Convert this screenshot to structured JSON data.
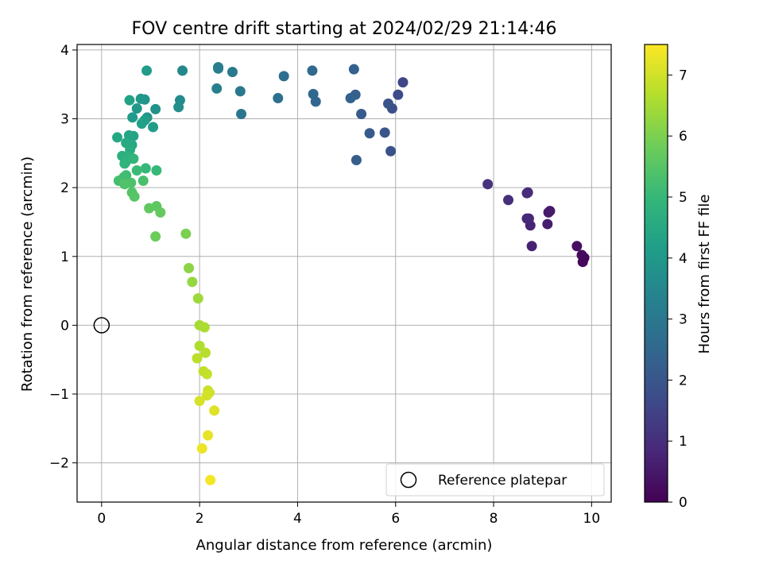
{
  "chart_data": {
    "type": "scatter",
    "title": "FOV centre drift starting at 2024/02/29 21:14:46",
    "xlabel": "Angular distance from reference (arcmin)",
    "ylabel": "Rotation from reference (arcmin)",
    "xlim": [
      -0.5,
      10.4
    ],
    "ylim": [
      -2.57,
      4.08
    ],
    "xticks": [
      0,
      2,
      4,
      6,
      8,
      10
    ],
    "yticks": [
      -2,
      -1,
      0,
      1,
      2,
      3,
      4
    ],
    "grid": true,
    "legend": {
      "position": "lower-right",
      "entries": [
        "Reference platepar"
      ]
    },
    "reference_point": {
      "x": 0,
      "y": 0,
      "label": "Reference platepar"
    },
    "colorbar": {
      "label": "Hours from first FF file",
      "colormap": "viridis",
      "range": [
        0,
        7.5
      ],
      "ticks": [
        0,
        1,
        2,
        3,
        4,
        5,
        6,
        7
      ]
    },
    "points": [
      [
        9.85,
        0.98,
        0.1
      ],
      [
        9.82,
        0.92,
        0.15
      ],
      [
        9.8,
        1.02,
        0.2
      ],
      [
        9.7,
        1.15,
        0.3
      ],
      [
        9.15,
        1.66,
        0.5
      ],
      [
        9.12,
        1.64,
        0.55
      ],
      [
        9.1,
        1.47,
        0.6
      ],
      [
        8.78,
        1.15,
        0.7
      ],
      [
        8.75,
        1.45,
        0.75
      ],
      [
        8.72,
        1.55,
        0.8
      ],
      [
        8.68,
        1.55,
        0.85
      ],
      [
        8.7,
        1.93,
        0.9
      ],
      [
        8.68,
        1.92,
        0.95
      ],
      [
        8.3,
        1.82,
        1.0
      ],
      [
        7.88,
        2.05,
        1.1
      ],
      [
        6.15,
        3.53,
        1.6
      ],
      [
        6.05,
        3.35,
        1.7
      ],
      [
        5.93,
        3.15,
        1.8
      ],
      [
        5.9,
        2.53,
        1.9
      ],
      [
        5.85,
        3.22,
        1.95
      ],
      [
        5.78,
        2.8,
        2.0
      ],
      [
        5.47,
        2.79,
        2.1
      ],
      [
        5.3,
        3.07,
        2.15
      ],
      [
        5.2,
        2.4,
        2.2
      ],
      [
        5.18,
        3.35,
        2.25
      ],
      [
        5.15,
        3.72,
        2.3
      ],
      [
        5.08,
        3.3,
        2.35
      ],
      [
        4.37,
        3.25,
        2.45
      ],
      [
        4.32,
        3.36,
        2.5
      ],
      [
        4.3,
        3.7,
        2.55
      ],
      [
        3.72,
        3.62,
        2.7
      ],
      [
        3.6,
        3.3,
        2.75
      ],
      [
        2.85,
        3.07,
        2.95
      ],
      [
        2.83,
        3.4,
        3.0
      ],
      [
        2.67,
        3.68,
        3.05
      ],
      [
        2.38,
        3.75,
        3.15
      ],
      [
        2.38,
        3.73,
        3.2
      ],
      [
        2.35,
        3.44,
        3.25
      ],
      [
        1.65,
        3.7,
        3.5
      ],
      [
        1.6,
        3.27,
        3.6
      ],
      [
        1.57,
        3.17,
        3.7
      ],
      [
        1.1,
        3.14,
        3.8
      ],
      [
        0.93,
        3.02,
        3.85
      ],
      [
        0.88,
        3.28,
        3.9
      ],
      [
        0.8,
        3.29,
        3.95
      ],
      [
        0.72,
        3.15,
        4.0
      ],
      [
        0.63,
        3.02,
        4.05
      ],
      [
        0.92,
        3.7,
        4.1
      ],
      [
        1.05,
        2.88,
        4.15
      ],
      [
        0.88,
        2.98,
        4.2
      ],
      [
        0.82,
        2.93,
        4.25
      ],
      [
        0.57,
        3.27,
        4.3
      ],
      [
        0.65,
        2.75,
        4.35
      ],
      [
        0.56,
        2.76,
        4.4
      ],
      [
        0.32,
        2.73,
        4.45
      ],
      [
        0.62,
        2.62,
        4.5
      ],
      [
        0.5,
        2.65,
        4.55
      ],
      [
        0.58,
        2.55,
        4.6
      ],
      [
        0.42,
        2.46,
        4.7
      ],
      [
        0.55,
        2.45,
        4.75
      ],
      [
        0.5,
        2.38,
        4.8
      ],
      [
        0.47,
        2.35,
        4.85
      ],
      [
        0.65,
        2.42,
        4.9
      ],
      [
        0.9,
        2.28,
        5.0
      ],
      [
        1.12,
        2.25,
        5.05
      ],
      [
        0.72,
        2.25,
        5.1
      ],
      [
        0.5,
        2.18,
        5.15
      ],
      [
        0.45,
        2.15,
        5.2
      ],
      [
        0.35,
        2.1,
        5.25
      ],
      [
        0.85,
        2.1,
        5.3
      ],
      [
        0.6,
        2.07,
        5.35
      ],
      [
        0.47,
        2.05,
        5.4
      ],
      [
        0.62,
        1.93,
        5.45
      ],
      [
        0.67,
        1.87,
        5.5
      ],
      [
        1.12,
        1.73,
        5.6
      ],
      [
        0.97,
        1.7,
        5.65
      ],
      [
        1.2,
        1.64,
        5.7
      ],
      [
        1.1,
        1.29,
        5.8
      ],
      [
        1.72,
        1.33,
        6.0
      ],
      [
        1.78,
        0.83,
        6.2
      ],
      [
        1.85,
        0.63,
        6.3
      ],
      [
        1.97,
        0.39,
        6.4
      ],
      [
        2.0,
        0.0,
        6.5
      ],
      [
        2.1,
        -0.03,
        6.55
      ],
      [
        2.0,
        -0.3,
        6.6
      ],
      [
        2.12,
        -0.4,
        6.7
      ],
      [
        1.95,
        -0.48,
        6.75
      ],
      [
        2.08,
        -0.67,
        6.8
      ],
      [
        2.15,
        -0.71,
        6.85
      ],
      [
        2.17,
        -0.95,
        6.9
      ],
      [
        2.2,
        -0.98,
        6.95
      ],
      [
        2.15,
        -1.02,
        7.0
      ],
      [
        2.0,
        -1.1,
        7.05
      ],
      [
        2.3,
        -1.24,
        7.15
      ],
      [
        2.17,
        -1.6,
        7.25
      ],
      [
        2.05,
        -1.79,
        7.3
      ],
      [
        2.22,
        -2.25,
        7.4
      ]
    ]
  }
}
